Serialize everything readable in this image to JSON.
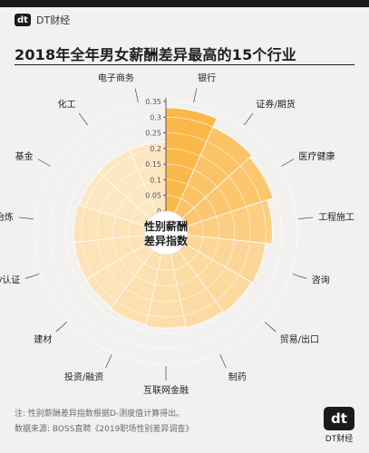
{
  "brand": {
    "badge": "dt",
    "name": "DT财经"
  },
  "title": "2018年全年男女薪酬差异最高的15个行业",
  "chart_data": {
    "type": "polar-bar",
    "title": "2018年全年男女薪酬差异最高的15个行业",
    "center_label": [
      "性别薪酬",
      "差异指数"
    ],
    "rlim": [
      0,
      0.35
    ],
    "ticks": [
      "0.35",
      "0.3",
      "0.25",
      "0.2",
      "0.15",
      "0.1",
      "0.05",
      "0"
    ],
    "tick_values": [
      0.35,
      0.3,
      0.25,
      0.2,
      0.15,
      0.1,
      0.05,
      0
    ],
    "categories": [
      "银行",
      "证券/期货",
      "医疗健康",
      "工程施工",
      "咨询",
      "贸易/出口",
      "制药",
      "互联网金融",
      "投资/融资",
      "建材",
      "检测/认证",
      "采掘/冶炼",
      "基金",
      "化工",
      "电子商务"
    ],
    "values": [
      0.33,
      0.3,
      0.29,
      0.27,
      0.25,
      0.245,
      0.24,
      0.235,
      0.23,
      0.225,
      0.225,
      0.225,
      0.22,
      0.22,
      0.22
    ],
    "colors": {
      "max": "#fbb84a",
      "min": "#fde7c2",
      "grid": "#ffffff"
    }
  },
  "footer": {
    "note": "注: 性别薪酬差异指数根据D-测度值计算得出。",
    "source": "数据来源: BOSS直聘《2019职场性别差异调查》",
    "logo_badge": "dt",
    "logo_text": "DT财经"
  }
}
